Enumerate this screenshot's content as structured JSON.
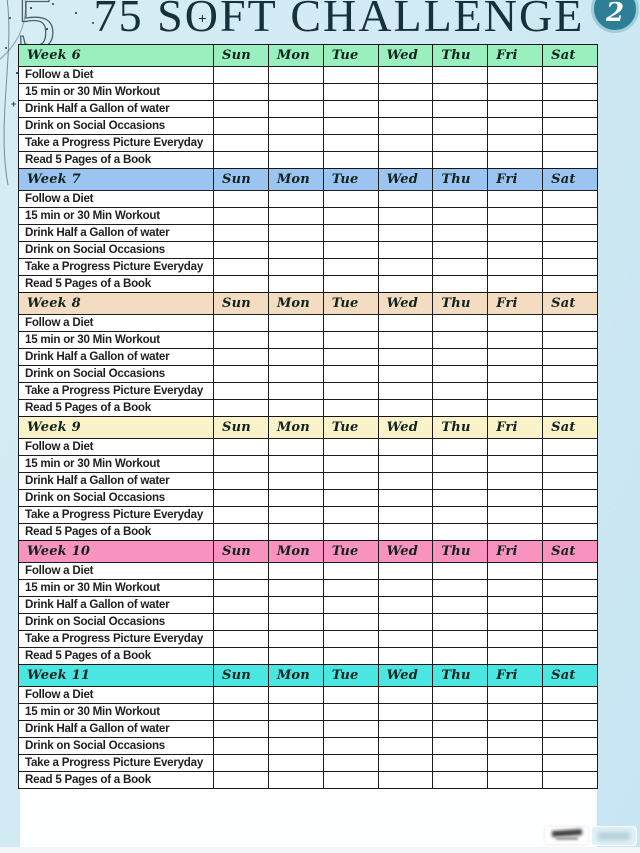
{
  "header": {
    "title_part1": "75 S",
    "title_o": "O",
    "title_ornament": "+",
    "title_part2": "FT CHALLENGE",
    "page_badge": "2"
  },
  "decor": {
    "numeral": "5"
  },
  "tracker": {
    "day_headers": [
      "Sun",
      "Mon",
      "Tue",
      "Wed",
      "Thu",
      "Fri",
      "Sat"
    ],
    "tasks": [
      "Follow a Diet",
      "15 min or 30 Min Workout",
      "Drink Half a Gallon of water",
      "Drink on Social Occasions",
      "Take a Progress Picture Everyday",
      "Read 5 Pages of a Book"
    ],
    "weeks": [
      {
        "label": "Week 6",
        "color": "#99EFBD"
      },
      {
        "label": "Week 7",
        "color": "#9CC4F0"
      },
      {
        "label": "Week 8",
        "color": "#F3DCC2"
      },
      {
        "label": "Week 9",
        "color": "#FAF2C8"
      },
      {
        "label": "Week 10",
        "color": "#F892BE"
      },
      {
        "label": "Week 11",
        "color": "#4BE6E2"
      }
    ],
    "cell_state_empty": ""
  },
  "colors": {
    "background": "#CFE9F3",
    "grid_border": "#1C1C1C",
    "title": "#16303C",
    "badge_fill": "#2E7E95"
  }
}
